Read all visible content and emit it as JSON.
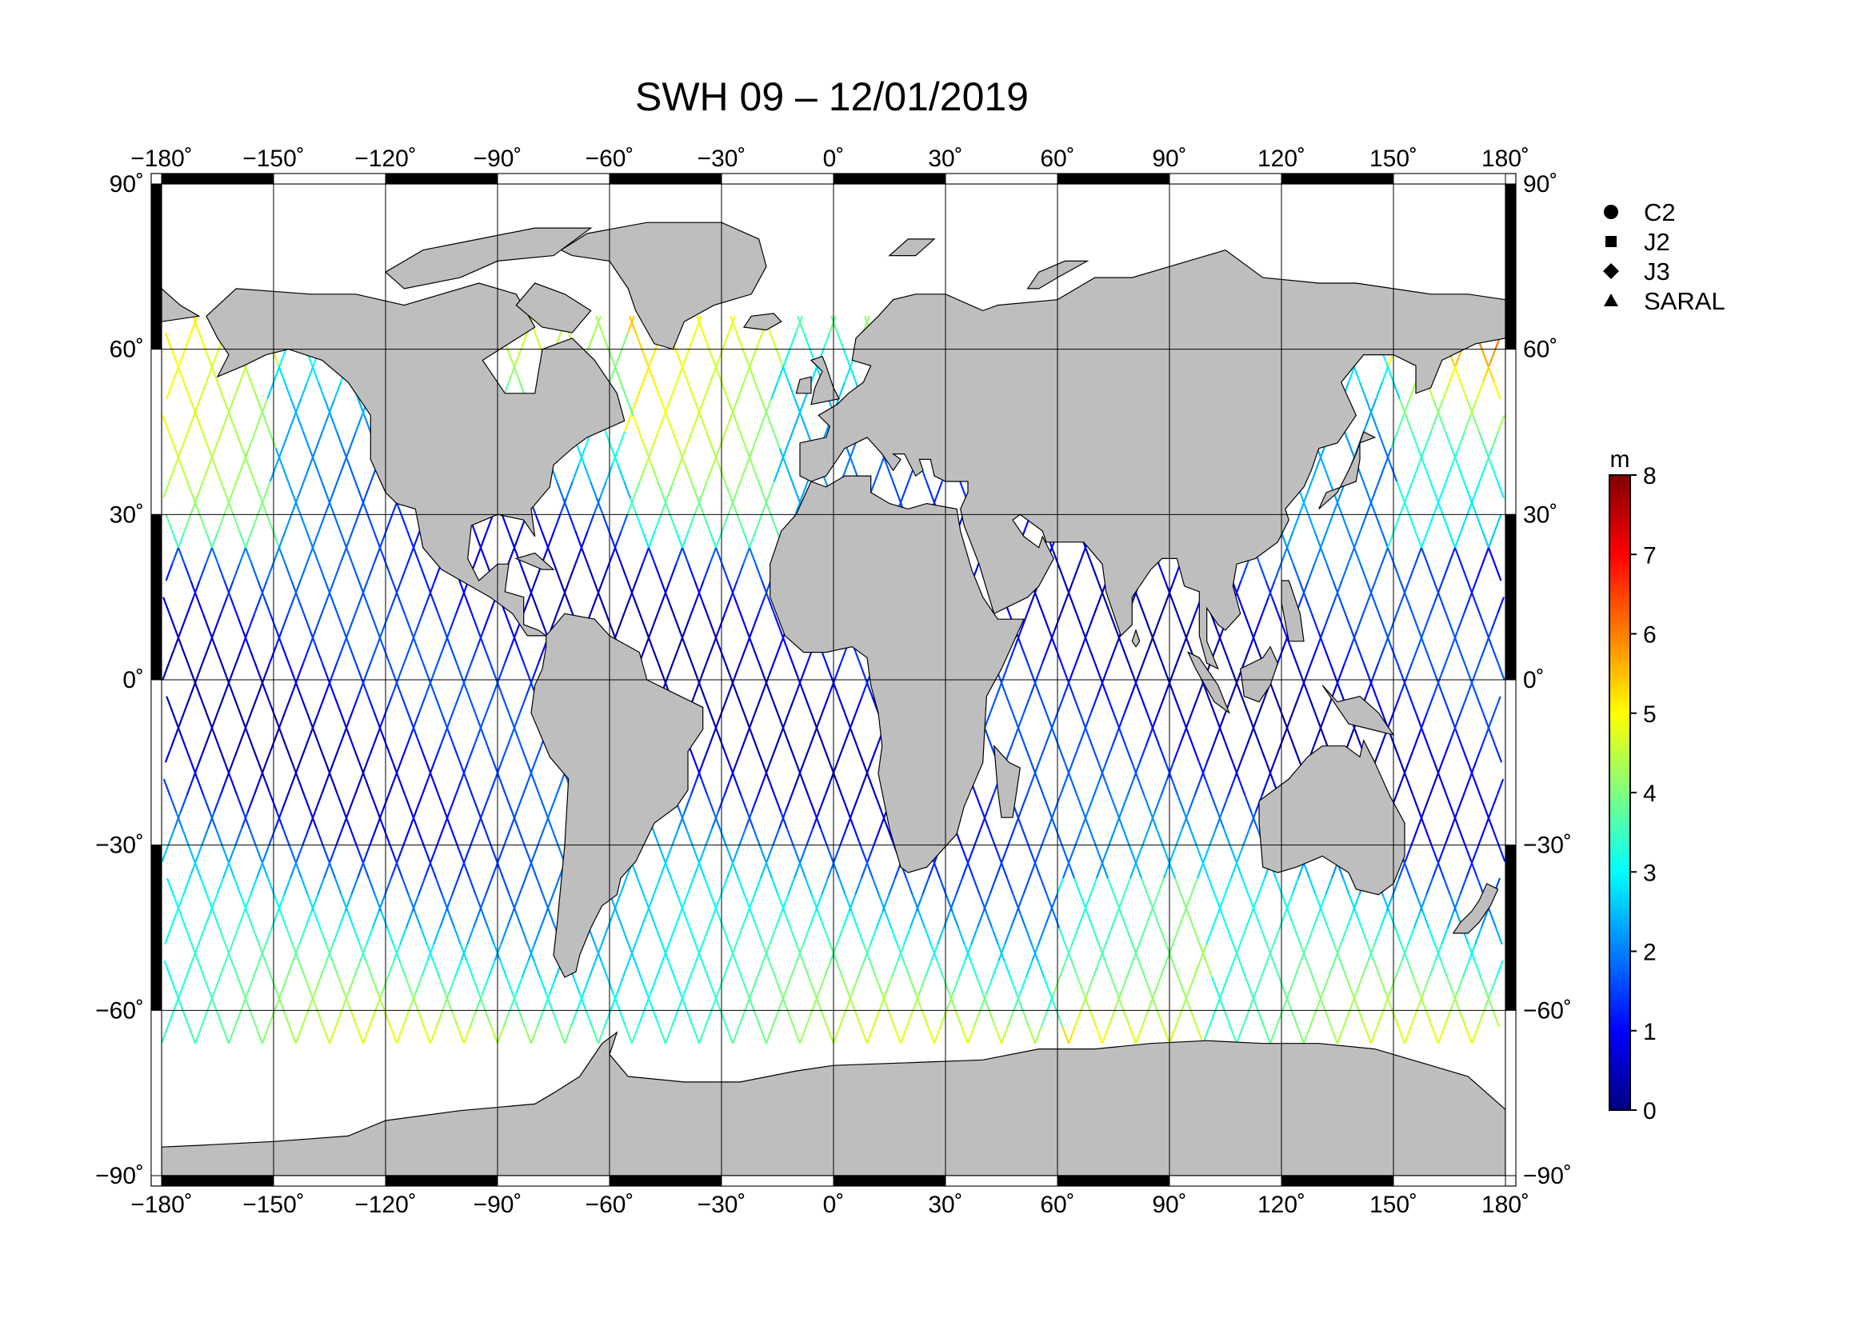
{
  "title": "SWH 09 – 12/01/2019",
  "x_ticks": [
    "−180˚",
    "−150˚",
    "−120˚",
    "−90˚",
    "−60˚",
    "−30˚",
    "0˚",
    "30˚",
    "60˚",
    "90˚",
    "120˚",
    "150˚",
    "180˚"
  ],
  "y_ticks": [
    "90˚",
    "60˚",
    "30˚",
    "0˚",
    "−30˚",
    "−60˚",
    "−90˚"
  ],
  "legend": [
    {
      "label": "C2",
      "marker": "circle-icon"
    },
    {
      "label": "J2",
      "marker": "square-icon"
    },
    {
      "label": "J3",
      "marker": "diamond-icon"
    },
    {
      "label": "SARAL",
      "marker": "triangle-icon"
    }
  ],
  "colorbar": {
    "unit": "m",
    "ticks": [
      "0",
      "1",
      "2",
      "3",
      "4",
      "5",
      "6",
      "7",
      "8"
    ],
    "range": [
      0,
      8
    ],
    "colors": [
      "#00007f",
      "#0000ff",
      "#007fff",
      "#00ffff",
      "#7fff7f",
      "#ffff00",
      "#ff7f00",
      "#ff0000",
      "#7f0000"
    ]
  },
  "colors": {
    "land": "#bebebe",
    "ocean": "#ffffff",
    "grid": "#000000"
  },
  "chart_data": {
    "type": "scatter",
    "title": "SWH 09 – 12/01/2019",
    "xlim": [
      -180,
      180
    ],
    "ylim": [
      -90,
      90
    ],
    "grid": true,
    "legend_position": "top-right",
    "series": [
      {
        "name": "C2"
      },
      {
        "name": "J2"
      },
      {
        "name": "J3"
      },
      {
        "name": "SARAL"
      }
    ]
  }
}
